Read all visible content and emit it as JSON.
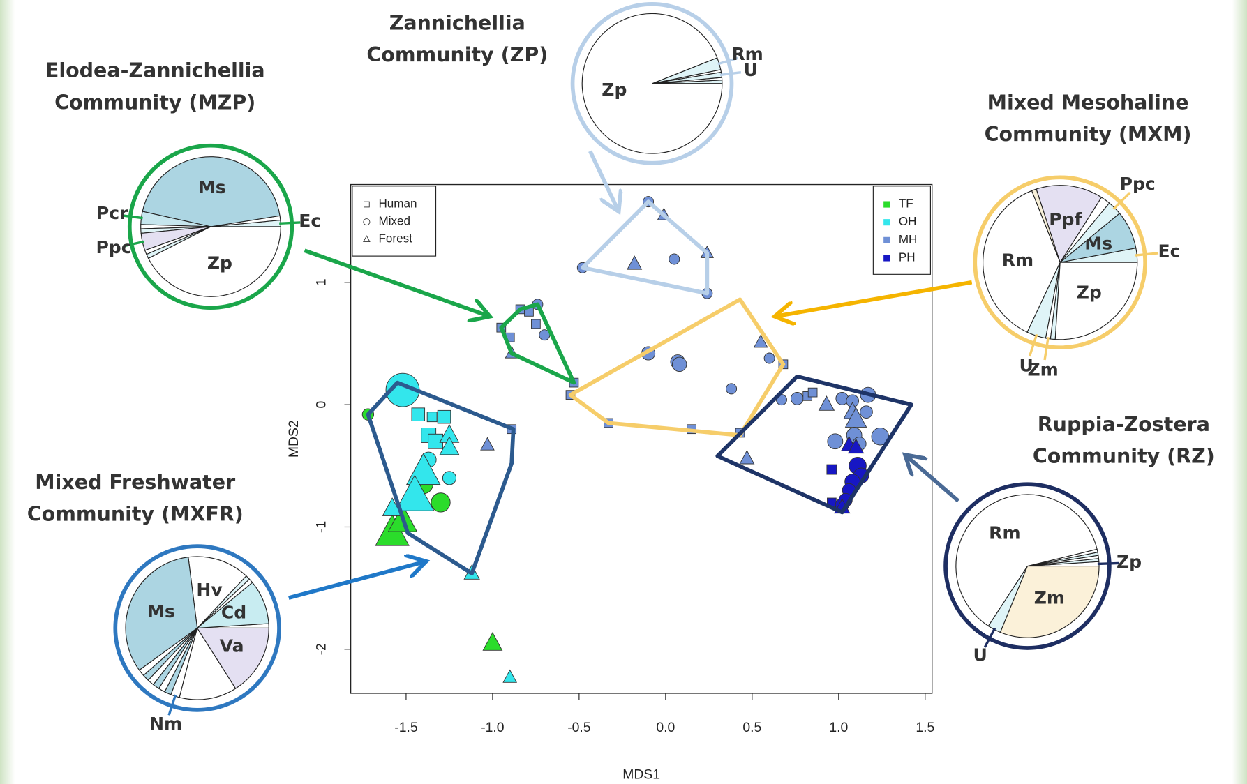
{
  "chart_data": [
    {
      "type": "scatter",
      "x_label": "MDS1",
      "y_label": "MDS2",
      "xlim": [
        -1.82,
        1.54
      ],
      "ylim": [
        -2.36,
        1.8
      ],
      "xticks": [
        -1.5,
        {
          "value": -1,
          "label": "-1.0"
        },
        -0.5,
        {
          "value": 0,
          "label": "0.0"
        },
        0.5,
        {
          "value": 1,
          "label": "1.0"
        },
        1.5
      ],
      "yticks": [
        -2,
        -1,
        0,
        1
      ],
      "shape_legend": [
        "Human",
        "Mixed",
        "Forest"
      ],
      "series": [
        {
          "name": "TF",
          "color": "#2bdc2b",
          "x": [
            -1.72,
            -1.58,
            -1.52,
            -1.4,
            -1.3,
            -1.0
          ],
          "y": [
            -0.08,
            -1.05,
            -0.95,
            -0.65,
            -0.8,
            -1.95
          ],
          "size": [
            1.2,
            3.5,
            3,
            2,
            2,
            2
          ],
          "shape": [
            "Mixed",
            "Forest",
            "Forest",
            "Mixed",
            "Mixed",
            "Forest"
          ]
        },
        {
          "name": "OH",
          "color": "#33e6ec",
          "x": [
            -1.52,
            -1.35,
            -1.28,
            -1.43,
            -1.37,
            -1.33,
            -1.37,
            -1.25,
            -1.25,
            -1.25,
            -1.4,
            -1.45,
            -1.58,
            -1.12,
            -0.9
          ],
          "y": [
            0.12,
            -0.1,
            -0.1,
            -0.08,
            -0.25,
            -0.3,
            -0.45,
            -0.6,
            -0.25,
            -0.35,
            -0.55,
            -0.75,
            -0.85,
            -1.38,
            -2.23
          ],
          "size": [
            3.5,
            1.2,
            1.6,
            1.6,
            1.8,
            1.8,
            1.6,
            1.4,
            2,
            2,
            3.5,
            4,
            2,
            1.6,
            1.4
          ],
          "shape": [
            "Mixed",
            "Human",
            "Human",
            "Human",
            "Human",
            "Human",
            "Mixed",
            "Mixed",
            "Forest",
            "Forest",
            "Forest",
            "Forest",
            "Forest",
            "Forest",
            "Forest"
          ]
        },
        {
          "name": "MH",
          "color": "#6f90d6",
          "x": [
            -0.1,
            -0.01,
            -0.48,
            -0.18,
            0.05,
            0.24,
            0.24,
            -0.95,
            -0.9,
            -0.84,
            -0.79,
            -0.75,
            -0.74,
            -0.7,
            -0.89,
            -0.53,
            -0.55,
            -1.03,
            -0.89,
            -0.1,
            0.07,
            0.08,
            0.38,
            0.15,
            -0.33,
            0.43,
            0.55,
            0.6,
            0.68,
            0.76,
            0.67,
            0.82,
            0.85,
            1.02,
            1.08,
            1.17,
            1.16,
            0.98,
            1.24,
            1.09,
            1.12,
            0.93,
            1.08,
            0.47,
            1.1
          ],
          "y": [
            1.66,
            1.55,
            1.12,
            1.15,
            1.19,
            1.24,
            0.91,
            0.63,
            0.55,
            0.78,
            0.76,
            0.66,
            0.82,
            0.57,
            0.42,
            0.18,
            0.08,
            -0.33,
            -0.2,
            0.42,
            0.35,
            0.33,
            0.13,
            -0.2,
            -0.15,
            -0.23,
            0.51,
            0.38,
            0.33,
            0.05,
            0.04,
            0.07,
            0.1,
            0.05,
            0.03,
            0.08,
            -0.06,
            -0.3,
            -0.26,
            -0.25,
            -0.32,
            0.0,
            -0.06,
            -0.44,
            -0.12
          ],
          "size": [
            1.1,
            1.3,
            1.1,
            1.5,
            1.1,
            1.3,
            1.1,
            1.1,
            1.1,
            1.1,
            1.1,
            1.1,
            1.1,
            1.1,
            1.3,
            1.1,
            1.1,
            1.4,
            1.1,
            1.4,
            1.5,
            1.5,
            1.1,
            1.1,
            1.1,
            1.1,
            1.4,
            1.1,
            1.1,
            1.3,
            1.1,
            1.1,
            1.1,
            1.3,
            1.3,
            1.6,
            1.3,
            1.6,
            1.8,
            1.6,
            1.4,
            1.6,
            1.8,
            1.5,
            2.2
          ],
          "shape": [
            "Mixed",
            "Forest",
            "Mixed",
            "Forest",
            "Mixed",
            "Forest",
            "Mixed",
            "Human",
            "Human",
            "Human",
            "Human",
            "Human",
            "Mixed",
            "Mixed",
            "Forest",
            "Human",
            "Human",
            "Forest",
            "Human",
            "Mixed",
            "Mixed",
            "Mixed",
            "Mixed",
            "Human",
            "Human",
            "Human",
            "Forest",
            "Mixed",
            "Human",
            "Mixed",
            "Mixed",
            "Human",
            "Human",
            "Mixed",
            "Mixed",
            "Mixed",
            "Mixed",
            "Mixed",
            "Mixed",
            "Mixed",
            "Mixed",
            "Forest",
            "Forest",
            "Forest",
            "Forest"
          ]
        },
        {
          "name": "PH",
          "color": "#1717c4",
          "x": [
            0.96,
            0.96,
            1.11,
            1.13,
            1.08,
            1.06,
            1.02,
            1.04,
            1.06,
            1.02,
            1.1
          ],
          "y": [
            -0.53,
            -0.8,
            -0.5,
            -0.58,
            -0.63,
            -0.7,
            -0.82,
            -0.78,
            -0.33,
            -0.84,
            -0.35
          ],
          "size": [
            1.2,
            1.1,
            1.8,
            1.6,
            1.6,
            1.4,
            1.4,
            1.4,
            1.6,
            1.6,
            1.6
          ],
          "shape": [
            "Human",
            "Human",
            "Mixed",
            "Mixed",
            "Mixed",
            "Mixed",
            "Mixed",
            "Mixed",
            "Forest",
            "Forest",
            "Forest"
          ]
        }
      ],
      "hulls": [
        {
          "color": "#b7cfe8",
          "x": [
            -0.1,
            0.24,
            0.24,
            -0.48
          ],
          "y": [
            1.66,
            1.24,
            0.91,
            1.12
          ]
        },
        {
          "color": "#1aa64a",
          "x": [
            -0.95,
            -0.84,
            -0.74,
            -0.53,
            -0.89
          ],
          "y": [
            0.63,
            0.78,
            0.82,
            0.18,
            0.42
          ]
        },
        {
          "color": "#f6cd6a",
          "x": [
            -0.55,
            0.43,
            0.68,
            0.43,
            -0.33
          ],
          "y": [
            0.08,
            0.86,
            0.33,
            -0.25,
            -0.15
          ]
        },
        {
          "color": "#1e3467",
          "x": [
            0.3,
            0.76,
            1.42,
            1.02
          ],
          "y": [
            -0.42,
            0.23,
            0.0,
            -0.88
          ]
        },
        {
          "color": "#2c5a8e",
          "x": [
            -1.72,
            -1.55,
            -0.88,
            -0.89,
            -1.12,
            -1.49
          ],
          "y": [
            -0.08,
            0.18,
            -0.2,
            -0.48,
            -1.38,
            -1.05
          ]
        }
      ]
    },
    {
      "type": "pie",
      "title": [
        "Zannichellia",
        "Community (ZP)"
      ],
      "ring_color": "#b7cfe8",
      "categories": [
        null,
        null,
        "U",
        null,
        "Rm",
        "Zp"
      ],
      "values": [
        0.8,
        0.6,
        1.2,
        0.6,
        2.8,
        94
      ],
      "colors": [
        "#dff4f7",
        "#ffffff",
        "#dff4f7",
        "#ffffff",
        "#dff4f7",
        "#ffffff"
      ]
    },
    {
      "type": "pie",
      "title": [
        "Elodea-Zannichellia",
        "Community (MZP)"
      ],
      "ring_color": "#1aa64a",
      "categories": [
        "Ec",
        null,
        "Ms",
        "Pcr",
        null,
        null,
        "Ppc",
        null,
        null,
        "Zp"
      ],
      "values": [
        1.5,
        1,
        44,
        3,
        1,
        1,
        4,
        1,
        1,
        42.5
      ],
      "colors": [
        "#dff4f7",
        "#ffffff",
        "#acd5e2",
        "#c6e6ee",
        "#ffffff",
        "#dff4f7",
        "#e4e0f2",
        "#ffffff",
        "#dff4f7",
        "#ffffff"
      ]
    },
    {
      "type": "pie",
      "title": [
        "Mixed Mesohaline",
        "Community (MXM)"
      ],
      "ring_color": "#f6cd6a",
      "categories": [
        "Ec",
        "Ms",
        "Ppc",
        null,
        "Ppf",
        null,
        "Rm",
        "U",
        "Zm",
        null,
        "Zp"
      ],
      "values": [
        3,
        8,
        3,
        2,
        14,
        1,
        37,
        4,
        1,
        1,
        26
      ],
      "colors": [
        "#dff4f7",
        "#acd5e2",
        "#dff4f7",
        "#ffffff",
        "#e4e0f2",
        "#f7efd8",
        "#ffffff",
        "#dff4f7",
        "#ffffff",
        "#dff4f7",
        "#ffffff"
      ]
    },
    {
      "type": "pie",
      "title": [
        "Ruppia-Zostera",
        "Community (RZ)"
      ],
      "ring_color": "#1e2e62",
      "categories": [
        "Zp",
        null,
        null,
        null,
        null,
        "Rm",
        "U",
        "Zm"
      ],
      "values": [
        1,
        0.7,
        0.7,
        0.7,
        0.7,
        62,
        3,
        31.2
      ],
      "colors": [
        "#ffffff",
        "#dff4f7",
        "#ffffff",
        "#dff4f7",
        "#ffffff",
        "#ffffff",
        "#dff4f7",
        "#fbf1d9"
      ]
    },
    {
      "type": "pie",
      "title": [
        "Mixed Freshwater",
        "Community (MXFR)"
      ],
      "ring_color": "#2e78c0",
      "categories": [
        null,
        "Cd",
        null,
        null,
        "Hv",
        "Ms",
        null,
        null,
        null,
        null,
        null,
        null,
        "Nm",
        null,
        "Va"
      ],
      "values": [
        1,
        10,
        1,
        1,
        14,
        33,
        1.5,
        1.5,
        1.5,
        1.5,
        1.5,
        1.5,
        2,
        13,
        16
      ],
      "colors": [
        "#ffffff",
        "#c8ecf1",
        "#ffffff",
        "#dff4f7",
        "#ffffff",
        "#acd5e2",
        "#ffffff",
        "#acd5e2",
        "#ffffff",
        "#acd5e2",
        "#ffffff",
        "#acd5e2",
        "#ffffff",
        "#ffffff",
        "#e4e0f2"
      ]
    }
  ]
}
